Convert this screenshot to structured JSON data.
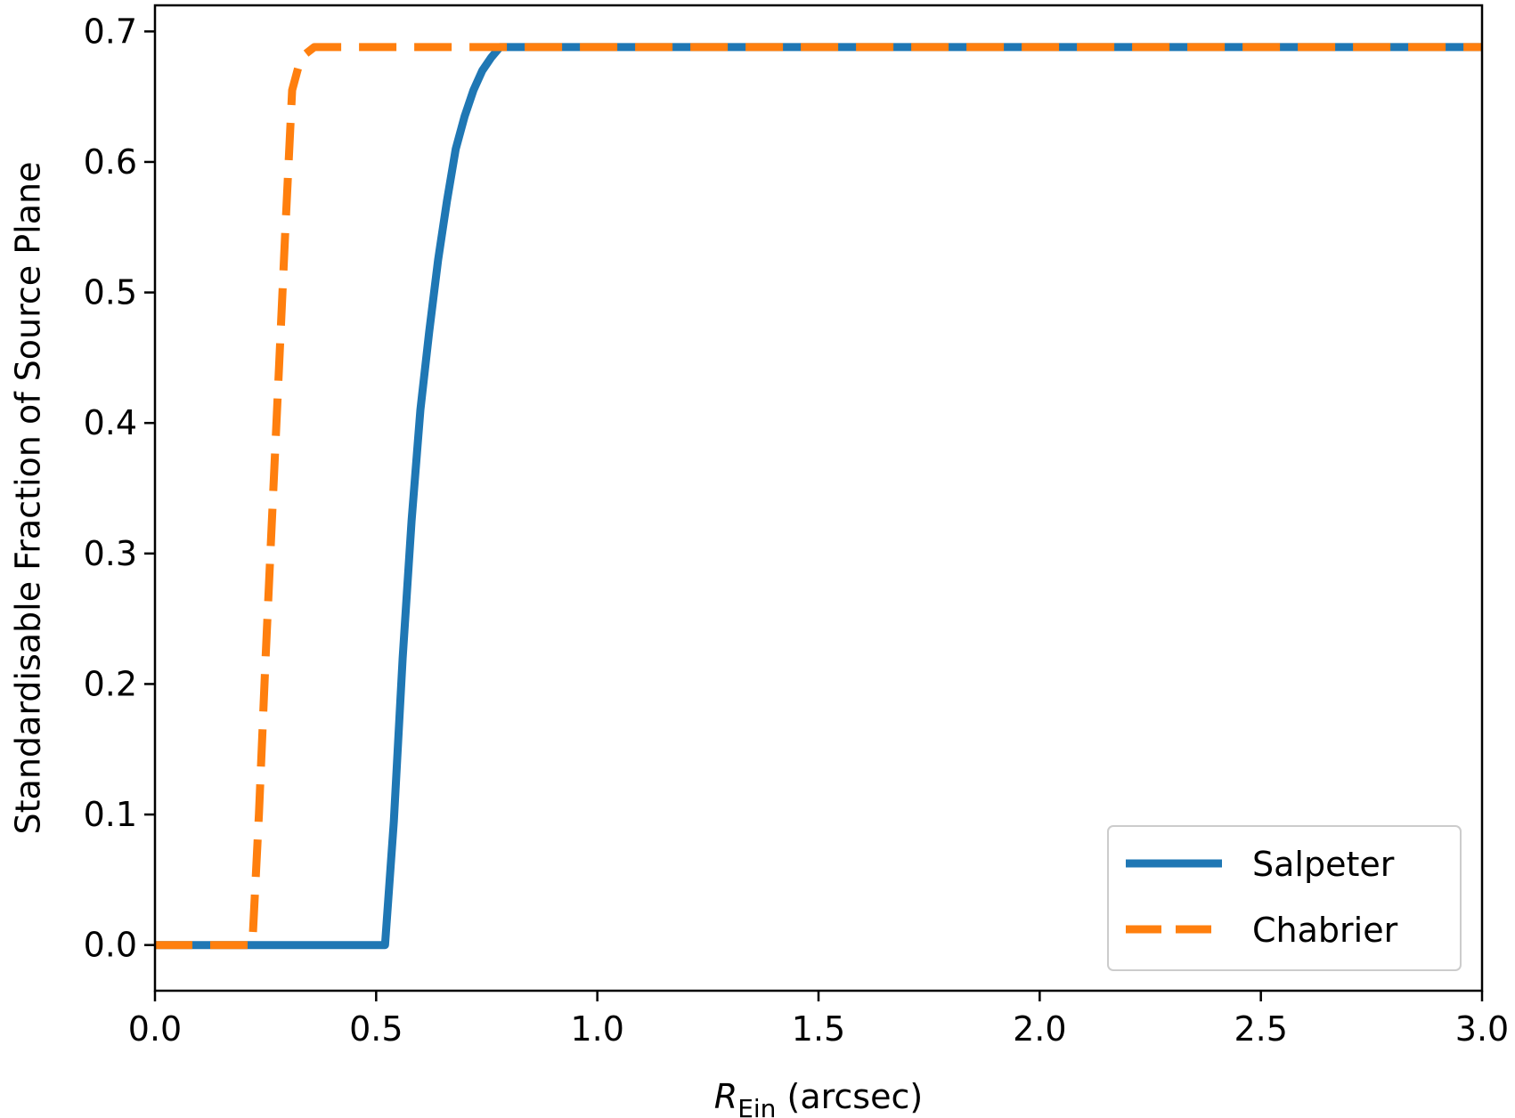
{
  "chart_data": {
    "type": "line",
    "xlabel": {
      "symbol": "R",
      "subscript": "Ein",
      "unit": " (arcsec)"
    },
    "ylabel": "Standardisable Fraction of Source Plane",
    "xlim": [
      0.0,
      3.0
    ],
    "ylim": [
      -0.035,
      0.72
    ],
    "xticks": [
      "0.0",
      "0.5",
      "1.0",
      "1.5",
      "2.0",
      "2.5",
      "3.0"
    ],
    "yticks": [
      "0.0",
      "0.1",
      "0.2",
      "0.3",
      "0.4",
      "0.5",
      "0.6",
      "0.7"
    ],
    "grid": false,
    "legend_position": "lower-right",
    "series": [
      {
        "name": "Salpeter",
        "color": "#1f77b4",
        "style": "solid",
        "x": [
          0.0,
          0.52,
          0.54,
          0.56,
          0.58,
          0.6,
          0.62,
          0.64,
          0.66,
          0.68,
          0.7,
          0.72,
          0.74,
          0.76,
          0.78,
          0.8,
          3.0
        ],
        "y": [
          0.0,
          0.0,
          0.095,
          0.22,
          0.325,
          0.41,
          0.47,
          0.525,
          0.57,
          0.61,
          0.635,
          0.655,
          0.67,
          0.68,
          0.688,
          0.688,
          0.688
        ]
      },
      {
        "name": "Chabrier",
        "color": "#ff7f0e",
        "style": "dashed",
        "x": [
          0.0,
          0.22,
          0.235,
          0.25,
          0.265,
          0.28,
          0.295,
          0.31,
          0.33,
          0.36,
          3.0
        ],
        "y": [
          0.0,
          0.0,
          0.1,
          0.22,
          0.33,
          0.44,
          0.55,
          0.655,
          0.68,
          0.688,
          0.688
        ]
      }
    ]
  }
}
